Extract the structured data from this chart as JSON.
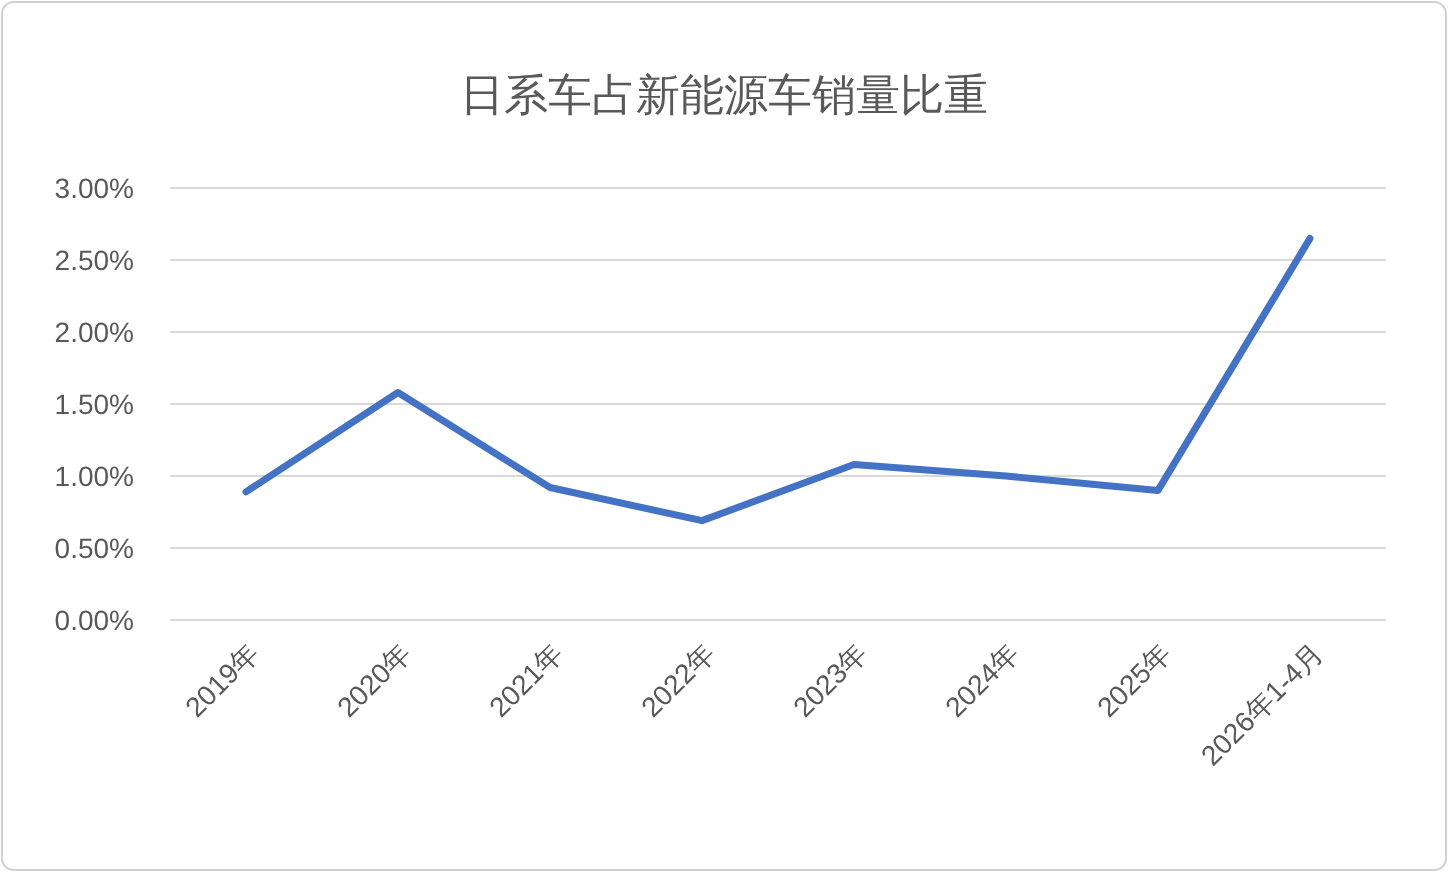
{
  "chart_data": {
    "type": "line",
    "title": "日系车占新能源车销量比重",
    "categories": [
      "2019年",
      "2020年",
      "2021年",
      "2022年",
      "2023年",
      "2024年",
      "2025年",
      "2026年1-4月"
    ],
    "series": [
      {
        "color": "#4472c4",
        "values": [
          0.89,
          1.58,
          0.92,
          0.69,
          1.08,
          1.0,
          0.9,
          2.65
        ]
      }
    ],
    "ylim": [
      0,
      3
    ],
    "yticks": [
      {
        "value": 0,
        "label": "0.00%"
      },
      {
        "value": 0.5,
        "label": "0.50%"
      },
      {
        "value": 1,
        "label": "1.00%"
      },
      {
        "value": 1.5,
        "label": "1.50%"
      },
      {
        "value": 2,
        "label": "2.00%"
      },
      {
        "value": 2.5,
        "label": "2.50%"
      },
      {
        "value": 3,
        "label": "3.00%"
      }
    ],
    "grid": "y",
    "marker": "none",
    "line_style": "solid"
  }
}
